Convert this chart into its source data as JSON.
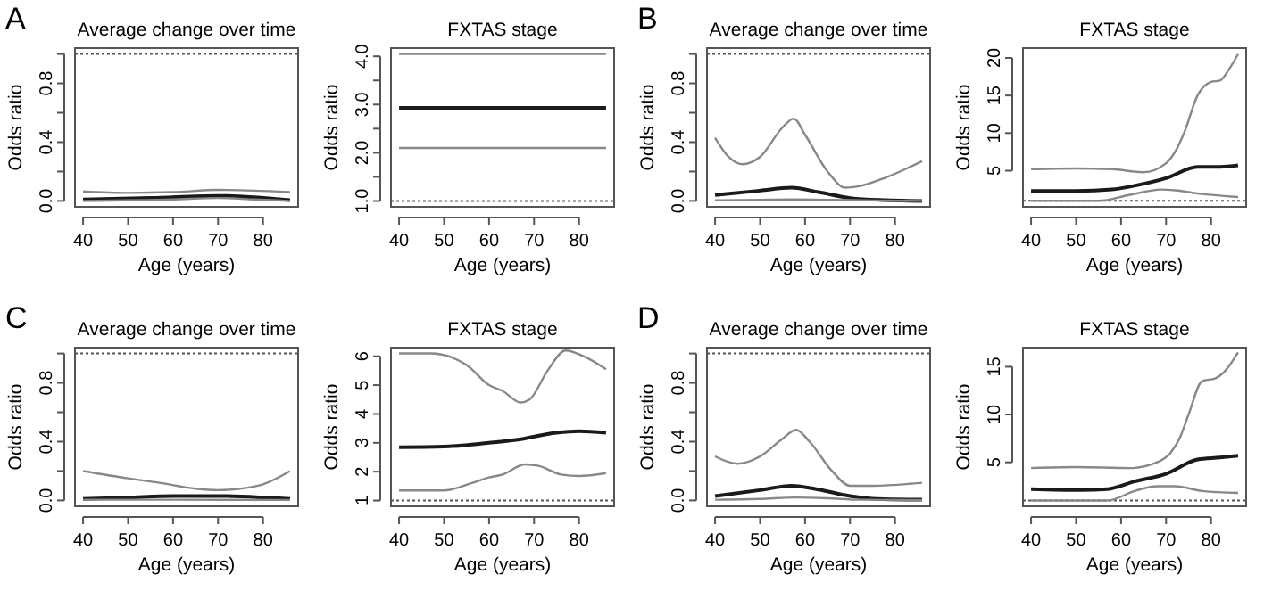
{
  "chart_data": [
    {
      "type": "line",
      "title": "Average change over time",
      "xlabel": "Age (years)",
      "ylabel": "Odds ratio",
      "annotations": [
        "A"
      ],
      "xlim": [
        38.2,
        87.8
      ],
      "xticks": [
        40,
        50,
        60,
        70,
        80
      ],
      "ylim": [
        -0.04,
        1.04
      ],
      "yticks": [
        {
          "value": 0,
          "label": "0.0"
        },
        {
          "value": 0.2,
          "label": null
        },
        {
          "value": 0.4,
          "label": "0.4"
        },
        {
          "value": 0.6,
          "label": null
        },
        {
          "value": 0.8,
          "label": "0.8"
        },
        {
          "value": 1,
          "label": null
        }
      ],
      "line_style": "solid",
      "ref_lines": [
        {
          "axis": "y",
          "value": 1,
          "color": "#555555",
          "line_style": "dotted"
        }
      ],
      "series": [
        {
          "color": "#888888",
          "x": [
            40,
            50,
            60,
            70,
            78,
            86
          ],
          "values": [
            0.065,
            0.055,
            0.06,
            0.075,
            0.07,
            0.06
          ]
        },
        {
          "color": "#1a1a1a",
          "x": [
            40,
            55,
            70,
            78,
            86
          ],
          "values": [
            0.01,
            0.02,
            0.035,
            0.025,
            0.005
          ]
        },
        {
          "color": "#888888",
          "x": [
            40,
            60,
            70,
            78,
            86
          ],
          "values": [
            0,
            0.01,
            0.02,
            0.01,
            0
          ]
        }
      ]
    },
    {
      "type": "line",
      "title": "FXTAS stage",
      "xlabel": "Age (years)",
      "ylabel": "Odds ratio",
      "xlim": [
        38.2,
        87.8
      ],
      "xticks": [
        40,
        50,
        60,
        70,
        80
      ],
      "ylim": [
        0.88,
        4.17
      ],
      "yticks": [
        {
          "value": 1,
          "label": "1.0"
        },
        {
          "value": 1.5,
          "label": null
        },
        {
          "value": 2,
          "label": "2.0"
        },
        {
          "value": 2.5,
          "label": null
        },
        {
          "value": 3,
          "label": "3.0"
        },
        {
          "value": 3.5,
          "label": null
        },
        {
          "value": 4,
          "label": "4.0"
        }
      ],
      "line_style": "solid",
      "ref_lines": [
        {
          "axis": "y",
          "value": 1,
          "color": "#555555",
          "line_style": "dotted"
        }
      ],
      "series": [
        {
          "color": "#888888",
          "x": [
            40,
            86
          ],
          "values": [
            4.05,
            4.05
          ]
        },
        {
          "color": "#1a1a1a",
          "x": [
            40,
            86
          ],
          "values": [
            2.93,
            2.93
          ]
        },
        {
          "color": "#888888",
          "x": [
            40,
            86
          ],
          "values": [
            2.1,
            2.1
          ]
        }
      ]
    },
    {
      "type": "line",
      "title": "Average change over time",
      "xlabel": "Age (years)",
      "ylabel": "Odds ratio",
      "annotations": [
        "B"
      ],
      "xlim": [
        38.2,
        87.8
      ],
      "xticks": [
        40,
        50,
        60,
        70,
        80
      ],
      "ylim": [
        -0.04,
        1.04
      ],
      "yticks": [
        {
          "value": 0,
          "label": "0.0"
        },
        {
          "value": 0.2,
          "label": null
        },
        {
          "value": 0.4,
          "label": "0.4"
        },
        {
          "value": 0.6,
          "label": null
        },
        {
          "value": 0.8,
          "label": "0.8"
        },
        {
          "value": 1,
          "label": null
        }
      ],
      "line_style": "solid",
      "ref_lines": [
        {
          "axis": "y",
          "value": 1,
          "color": "#555555",
          "line_style": "dotted"
        }
      ],
      "series": [
        {
          "color": "#888888",
          "x": [
            40,
            43,
            46,
            50,
            55,
            57.5,
            60,
            65,
            69,
            72,
            78,
            86
          ],
          "values": [
            0.43,
            0.3,
            0.25,
            0.3,
            0.5,
            0.56,
            0.45,
            0.2,
            0.09,
            0.1,
            0.16,
            0.27
          ]
        },
        {
          "color": "#1a1a1a",
          "x": [
            40,
            50,
            57,
            63,
            70,
            78,
            86
          ],
          "values": [
            0.04,
            0.07,
            0.09,
            0.06,
            0.02,
            0.005,
            0
          ]
        },
        {
          "color": "#888888",
          "x": [
            40,
            50,
            57,
            65,
            75,
            86
          ],
          "values": [
            0.005,
            0.008,
            0.01,
            0.008,
            0.003,
            0
          ]
        }
      ]
    },
    {
      "type": "line",
      "title": "FXTAS stage",
      "xlabel": "Age (years)",
      "ylabel": "Odds ratio",
      "xlim": [
        38.2,
        87.8
      ],
      "xticks": [
        40,
        50,
        60,
        70,
        80
      ],
      "ylim": [
        0.2,
        21.3
      ],
      "yticks": [
        5,
        10,
        15,
        20
      ],
      "line_style": "solid",
      "ref_lines": [
        {
          "axis": "y",
          "value": 1,
          "color": "#555555",
          "line_style": "dotted"
        }
      ],
      "series": [
        {
          "color": "#888888",
          "x": [
            40,
            50,
            58,
            65,
            70,
            72,
            74,
            77,
            80,
            82,
            84,
            86
          ],
          "values": [
            5.2,
            5.3,
            5.2,
            4.8,
            6,
            7.5,
            10,
            15,
            16.8,
            17,
            18.5,
            20.5
          ]
        },
        {
          "color": "#1a1a1a",
          "x": [
            40,
            50,
            58,
            63,
            70,
            77,
            82,
            86
          ],
          "values": [
            2.3,
            2.3,
            2.5,
            3,
            4,
            5.5,
            5.5,
            5.7
          ]
        },
        {
          "color": "#888888",
          "x": [
            40,
            55,
            62,
            69,
            72,
            78,
            86
          ],
          "values": [
            1,
            1,
            1.8,
            2.5,
            2.4,
            1.9,
            1.5
          ]
        }
      ]
    },
    {
      "type": "line",
      "title": "Average change over time",
      "xlabel": "Age (years)",
      "ylabel": "Odds ratio",
      "annotations": [
        "C"
      ],
      "xlim": [
        38.2,
        87.8
      ],
      "xticks": [
        40,
        50,
        60,
        70,
        80
      ],
      "ylim": [
        -0.04,
        1.04
      ],
      "yticks": [
        {
          "value": 0,
          "label": "0.0"
        },
        {
          "value": 0.2,
          "label": null
        },
        {
          "value": 0.4,
          "label": "0.4"
        },
        {
          "value": 0.6,
          "label": null
        },
        {
          "value": 0.8,
          "label": "0.8"
        },
        {
          "value": 1,
          "label": null
        }
      ],
      "line_style": "solid",
      "ref_lines": [
        {
          "axis": "y",
          "value": 1,
          "color": "#555555",
          "line_style": "dotted"
        }
      ],
      "series": [
        {
          "color": "#888888",
          "x": [
            40,
            50,
            57,
            65,
            70,
            75,
            80,
            86
          ],
          "values": [
            0.2,
            0.15,
            0.12,
            0.08,
            0.07,
            0.08,
            0.11,
            0.2
          ]
        },
        {
          "color": "#1a1a1a",
          "x": [
            40,
            50,
            60,
            70,
            80,
            86
          ],
          "values": [
            0.01,
            0.02,
            0.03,
            0.03,
            0.02,
            0.01
          ]
        },
        {
          "color": "#888888",
          "x": [
            40,
            60,
            86
          ],
          "values": [
            0.005,
            0.005,
            0.003
          ]
        }
      ]
    },
    {
      "type": "line",
      "title": "FXTAS stage",
      "xlabel": "Age (years)",
      "ylabel": "Odds ratio",
      "xlim": [
        38.2,
        87.8
      ],
      "xticks": [
        40,
        50,
        60,
        70,
        80
      ],
      "ylim": [
        0.8,
        6.3
      ],
      "yticks": [
        1,
        2,
        3,
        4,
        5,
        6
      ],
      "line_style": "solid",
      "ref_lines": [
        {
          "axis": "y",
          "value": 1,
          "color": "#555555",
          "line_style": "dotted"
        }
      ],
      "series": [
        {
          "color": "#888888",
          "x": [
            40,
            47,
            55,
            60,
            63,
            67,
            69,
            73,
            77,
            81,
            86
          ],
          "values": [
            6.1,
            6.1,
            5.7,
            5,
            4.8,
            4.4,
            4.5,
            5.5,
            6.2,
            6,
            5.55
          ]
        },
        {
          "color": "#1a1a1a",
          "x": [
            40,
            50,
            60,
            66,
            75,
            80,
            86
          ],
          "values": [
            2.85,
            2.87,
            3,
            3.1,
            3.35,
            3.4,
            3.35
          ]
        },
        {
          "color": "#888888",
          "x": [
            40,
            50,
            56,
            60,
            63,
            68,
            71,
            76,
            80,
            86
          ],
          "values": [
            1.35,
            1.35,
            1.6,
            1.8,
            1.9,
            2.25,
            2.2,
            1.9,
            1.85,
            1.95
          ]
        }
      ]
    },
    {
      "type": "line",
      "title": "Average change over time",
      "xlabel": "Age (years)",
      "ylabel": "Odds ratio",
      "annotations": [
        "D"
      ],
      "xlim": [
        38.2,
        87.8
      ],
      "xticks": [
        40,
        50,
        60,
        70,
        80
      ],
      "ylim": [
        -0.04,
        1.04
      ],
      "yticks": [
        {
          "value": 0,
          "label": "0.0"
        },
        {
          "value": 0.2,
          "label": null
        },
        {
          "value": 0.4,
          "label": "0.4"
        },
        {
          "value": 0.6,
          "label": null
        },
        {
          "value": 0.8,
          "label": "0.8"
        },
        {
          "value": 1,
          "label": null
        }
      ],
      "line_style": "solid",
      "ref_lines": [
        {
          "axis": "y",
          "value": 1,
          "color": "#555555",
          "line_style": "dotted"
        }
      ],
      "series": [
        {
          "color": "#888888",
          "x": [
            40,
            45,
            50,
            55,
            58,
            61,
            66,
            70,
            75,
            86
          ],
          "values": [
            0.3,
            0.25,
            0.3,
            0.42,
            0.48,
            0.4,
            0.2,
            0.1,
            0.1,
            0.12
          ]
        },
        {
          "color": "#1a1a1a",
          "x": [
            40,
            50,
            57,
            62,
            70,
            76,
            86
          ],
          "values": [
            0.03,
            0.07,
            0.1,
            0.08,
            0.03,
            0.01,
            0.005
          ]
        },
        {
          "color": "#888888",
          "x": [
            40,
            50,
            58,
            65,
            72,
            86
          ],
          "values": [
            0.005,
            0.01,
            0.02,
            0.015,
            0.005,
            0.003
          ]
        }
      ]
    },
    {
      "type": "line",
      "title": "FXTAS stage",
      "xlabel": "Age (years)",
      "ylabel": "Odds ratio",
      "xlim": [
        38.2,
        87.8
      ],
      "xticks": [
        40,
        50,
        60,
        70,
        80
      ],
      "ylim": [
        0.4,
        17
      ],
      "yticks": [
        5,
        10,
        15
      ],
      "line_style": "solid",
      "ref_lines": [
        {
          "axis": "y",
          "value": 1,
          "color": "#555555",
          "line_style": "dotted"
        }
      ],
      "series": [
        {
          "color": "#888888",
          "x": [
            40,
            50,
            62,
            68,
            71,
            73,
            75,
            78,
            81,
            83,
            86
          ],
          "values": [
            4.4,
            4.5,
            4.4,
            5,
            6,
            7.5,
            10,
            13.5,
            13.8,
            14.5,
            16.5
          ]
        },
        {
          "color": "#1a1a1a",
          "x": [
            40,
            51,
            57,
            63,
            70,
            77,
            82,
            86
          ],
          "values": [
            2.2,
            2.1,
            2.2,
            3,
            3.8,
            5.3,
            5.5,
            5.7
          ]
        },
        {
          "color": "#888888",
          "x": [
            40,
            57,
            63,
            68,
            72,
            78,
            86
          ],
          "values": [
            1,
            1,
            2,
            2.5,
            2.5,
            2,
            1.8
          ]
        }
      ]
    }
  ]
}
